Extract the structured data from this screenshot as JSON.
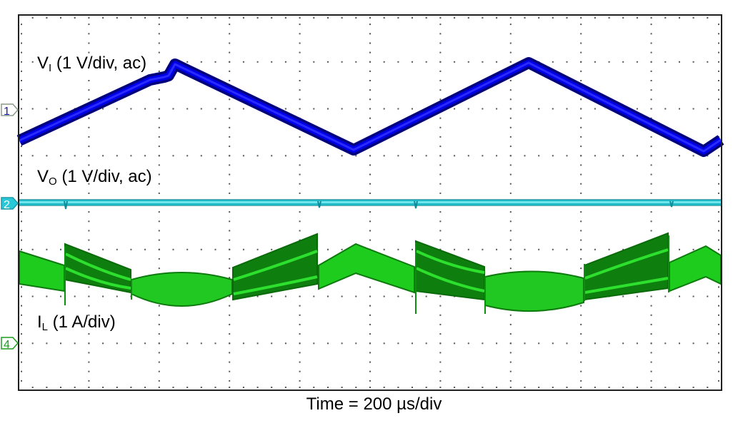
{
  "chart_data": {
    "type": "line",
    "title": "",
    "xlabel": "Time = 200 µs/div",
    "ylabel": "",
    "grid": "dotted, 10 x 8 divisions",
    "x_divisions": 10,
    "y_divisions": 8,
    "time_per_div_us": 200,
    "x_range_us": [
      0,
      2000
    ],
    "series": [
      {
        "name": "V_I (1 V/div, ac)",
        "channel": 1,
        "color": "#0000E0",
        "scale": "1 V/div",
        "coupling": "ac",
        "shape": "triangle wave",
        "x_us": [
          0,
          443,
          953,
          1449,
          1945,
          2000
        ],
        "y_div_rel_marker": [
          -0.6,
          1.0,
          -0.82,
          1.0,
          -0.84,
          -0.68
        ]
      },
      {
        "name": "V_O (1 V/div, ac)",
        "channel": 2,
        "color": "#28C8D8",
        "scale": "1 V/div",
        "coupling": "ac",
        "shape": "flat line with small switching ripple",
        "x_us": [
          0,
          2000
        ],
        "y_div_rel_marker": [
          0.0,
          0.0
        ]
      },
      {
        "name": "I_L (1 A/div)",
        "channel": 4,
        "color": "#18C818",
        "scale": "1 A/div",
        "shape": "ripple envelope with step changes",
        "x_us": [
          0,
          126,
          315,
          604,
          846,
          1123,
          1323,
          1606,
          1846,
          2000
        ],
        "envelope_top_div_rel_marker": [
          1.96,
          2.07,
          1.56,
          1.61,
          2.32,
          2.15,
          1.63,
          1.38,
          2.33,
          1.85
        ],
        "envelope_bottom_div_rel_marker": [
          1.27,
          1.09,
          1.03,
          0.9,
          1.25,
          1.1,
          0.92,
          0.87,
          1.17,
          1.17
        ]
      }
    ],
    "annotations": [
      {
        "text": "V_I (1 V/div, ac)",
        "channel": 1
      },
      {
        "text": "V_O (1 V/div, ac)",
        "channel": 2
      },
      {
        "text": "I_L (1 A/div)",
        "channel": 4
      }
    ]
  },
  "labels": {
    "vi_main": "V",
    "vi_sub": "I",
    "vi_rest": " (1 V/div, ac)",
    "vo_main": "V",
    "vo_sub": "O",
    "vo_rest": " (1 V/div, ac)",
    "il_main": "I",
    "il_sub": "L",
    "il_rest": " (1 A/div)",
    "x_axis": "Time = 200 µs/div"
  },
  "markers": [
    {
      "channel": "1",
      "color": "#1A1AB0"
    },
    {
      "channel": "2",
      "color": "#28C8D8"
    },
    {
      "channel": "4",
      "color": "#1E9E1E"
    }
  ]
}
